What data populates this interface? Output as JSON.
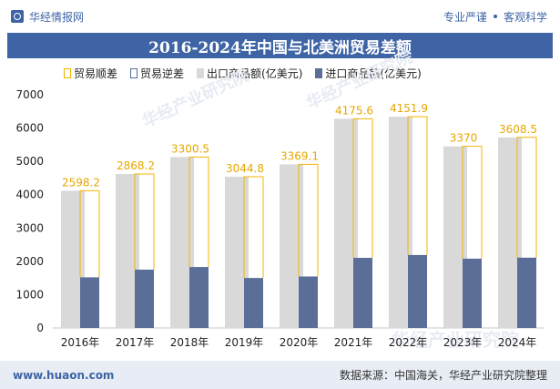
{
  "header": {
    "brand": "华经情报网",
    "slogan_left": "专业严谨",
    "slogan_right": "客观科学"
  },
  "footer": {
    "website": "www.huaon.com",
    "source": "数据来源：中国海关，华经产业研究院整理"
  },
  "watermark": "华经产业研究院",
  "colors": {
    "brand": "#3e64a5",
    "export": "#d9d9d9",
    "import": "#5b6e97",
    "surplus": "#f3b600",
    "label": "#e8a700"
  },
  "chart_data": {
    "type": "bar",
    "title": "2016-2024年中国与北美洲贸易差额",
    "categories": [
      "2016年",
      "2017年",
      "2018年",
      "2019年",
      "2020年",
      "2021年",
      "2022年",
      "2023年",
      "2024年"
    ],
    "series": [
      {
        "name": "出口商品额(亿美元)",
        "values": [
          4120,
          4620,
          5130,
          4540,
          4910,
          6280,
          6340,
          5450,
          5720
        ]
      },
      {
        "name": "进口商品额(亿美元)",
        "values": [
          1520,
          1750,
          1830,
          1500,
          1545,
          2105,
          2190,
          2080,
          2110
        ]
      }
    ],
    "balance": {
      "surplus_name": "贸易顺差",
      "deficit_name": "贸易逆差",
      "values": [
        2598.2,
        2868.2,
        3300.5,
        3044.8,
        3369.1,
        4175.6,
        4151.9,
        3370,
        3608.5
      ]
    },
    "yticks": [
      "0",
      "1000",
      "2000",
      "3000",
      "4000",
      "5000",
      "6000",
      "7000"
    ],
    "ylim": [
      0,
      7000
    ],
    "legend_position": "top",
    "grid": false
  }
}
